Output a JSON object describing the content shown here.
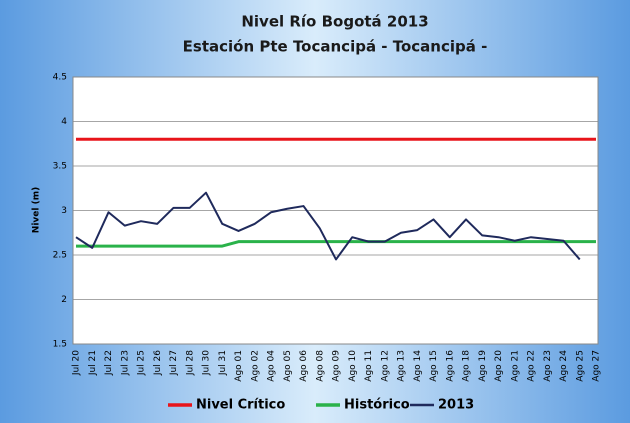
{
  "chart_data": {
    "type": "line",
    "title": "Nivel Río Bogotá 2013",
    "subtitle": "Estación Pte Tocancipá - Tocancipá -",
    "y_label": "Nivel (m)",
    "categories": [
      "Jul 20",
      "Jul 21",
      "Jul 22",
      "Jul 23",
      "Jul 25",
      "Jul 26",
      "Jul 27",
      "Jul 28",
      "Jul 30",
      "Jul 31",
      "Ago 01",
      "Ago 02",
      "Ago 04",
      "Ago 05",
      "Ago 06",
      "Ago 08",
      "Ago 09",
      "Ago 10",
      "Ago 11",
      "Ago 12",
      "Ago 13",
      "Ago 14",
      "Ago 15",
      "Ago 16",
      "Ago 18",
      "Ago 19",
      "Ago 20",
      "Ago 21",
      "Ago 22",
      "Ago 23",
      "Ago 24",
      "Ago 25",
      "Ago 27"
    ],
    "series": [
      {
        "name": "Nivel Crítico",
        "color": "#e8141a",
        "width": 3,
        "values": [
          3.8,
          3.8,
          3.8,
          3.8,
          3.8,
          3.8,
          3.8,
          3.8,
          3.8,
          3.8,
          3.8,
          3.8,
          3.8,
          3.8,
          3.8,
          3.8,
          3.8,
          3.8,
          3.8,
          3.8,
          3.8,
          3.8,
          3.8,
          3.8,
          3.8,
          3.8,
          3.8,
          3.8,
          3.8,
          3.8,
          3.8,
          3.8,
          3.8
        ]
      },
      {
        "name": "Histórico",
        "color": "#2ab24a",
        "width": 3,
        "values": [
          2.6,
          2.6,
          2.6,
          2.6,
          2.6,
          2.6,
          2.6,
          2.6,
          2.6,
          2.6,
          2.65,
          2.65,
          2.65,
          2.65,
          2.65,
          2.65,
          2.65,
          2.65,
          2.65,
          2.65,
          2.65,
          2.65,
          2.65,
          2.65,
          2.65,
          2.65,
          2.65,
          2.65,
          2.65,
          2.65,
          2.65,
          2.65,
          2.65
        ]
      },
      {
        "name": "2013",
        "color": "#1f2a5c",
        "width": 2,
        "values": [
          2.7,
          2.58,
          2.98,
          2.83,
          2.88,
          2.85,
          3.03,
          3.03,
          3.2,
          2.85,
          2.77,
          2.85,
          2.98,
          3.02,
          3.05,
          2.8,
          2.45,
          2.7,
          2.65,
          2.65,
          2.75,
          2.78,
          2.9,
          2.7,
          2.9,
          2.72,
          2.7,
          2.66,
          2.7,
          2.68,
          2.66,
          2.45,
          null
        ]
      }
    ],
    "ylim": [
      1.5,
      4.5
    ],
    "yticks": [
      1.5,
      2,
      2.5,
      3,
      3.5,
      4,
      4.5
    ],
    "grid": true,
    "legend": "bottom"
  }
}
